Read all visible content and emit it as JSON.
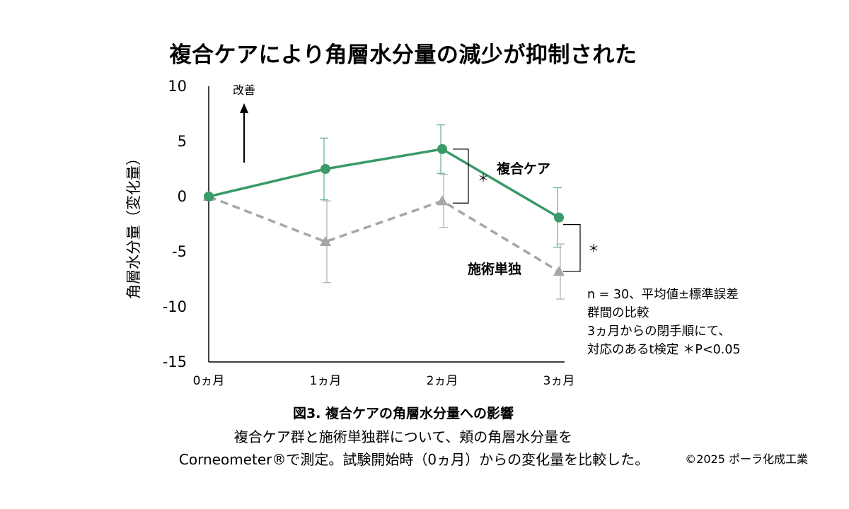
{
  "title": "複合ケアにより角層水分量の減少が抑制された",
  "chart_data": {
    "type": "line",
    "categories": [
      "0ヵ月",
      "1ヵ月",
      "2ヵ月",
      "3ヵ月"
    ],
    "ylabel": "角層水分量（変化量）",
    "ylim": [
      -15,
      10
    ],
    "yticks": [
      "10",
      "5",
      "0",
      "-5",
      "-10",
      "-15"
    ],
    "ytick_values": [
      10,
      5,
      0,
      -5,
      -10,
      -15
    ],
    "grid": false,
    "series": [
      {
        "name": "複合ケア",
        "values": [
          0,
          2.5,
          4.3,
          -1.9
        ],
        "error": [
          0,
          2.8,
          2.2,
          2.7
        ],
        "color": "#3a9a68",
        "style": "solid",
        "marker": "circle"
      },
      {
        "name": "施術単独",
        "values": [
          0,
          -4.1,
          -0.4,
          -6.8
        ],
        "error": [
          0,
          3.7,
          2.4,
          2.5
        ],
        "color": "#a6a6a6",
        "style": "dashed",
        "marker": "triangle"
      }
    ],
    "annotations": {
      "improve_label": "改善",
      "sig_2m": "＊",
      "sig_3m": "＊"
    }
  },
  "notes": [
    "n = 30、平均値±標準誤差",
    "群間の比較",
    "3ヵ月からの閉手順にて、",
    "対応のあるt検定 ＊P<0.05"
  ],
  "caption": {
    "title": "図3. 複合ケアの角層水分量への影響",
    "line1": "複合ケア群と施術単独群について、頬の角層水分量を",
    "line2": "Corneometer®で測定。試験開始時（0ヵ月）からの変化量を比較した。"
  },
  "copyright": "©2025 ポーラ化成工業"
}
